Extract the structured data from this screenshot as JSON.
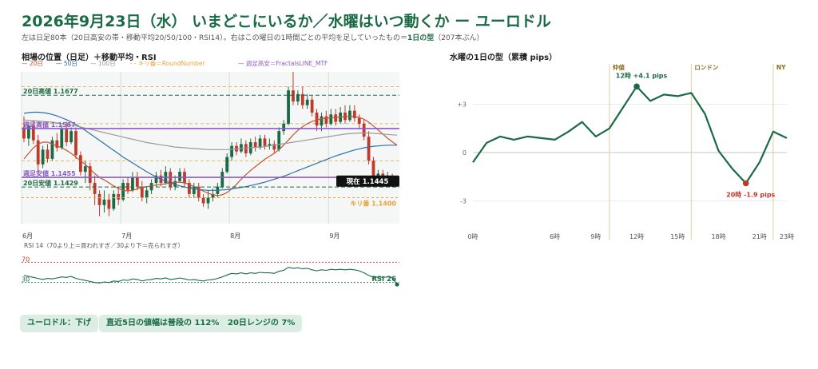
{
  "header": {
    "title": "2026年9月23日（水） いまどこにいるか／水曜はいつ動くか ー ユーロドル",
    "subtitle_pre": "左は日足80本（20日高安の帯・移動平均20/50/100・RSI14）。右はこの曜日の1時間ごとの平均を足していったもの＝",
    "subtitle_bold": "1日の型",
    "subtitle_post": "（207本ぶん）"
  },
  "left": {
    "title": "相場の位置（日足）＋移動平均・RSI",
    "legend": [
      "— 20日",
      "— 50日",
      "— 100日",
      "- - キリ番＝RoundNumber",
      "— 週足高安＝FractalsLINE_MTF"
    ]
  },
  "right": {
    "title": "水曜の1日の型（累積 pips）"
  },
  "chips": [
    "ユーロドル：下げ",
    "直近5日の値幅は普段の 112%",
    "20日レンジの 7%"
  ],
  "colors": {
    "up": "#1a6b45",
    "down": "#c0392b",
    "ma20": "#c8532f",
    "ma50": "#2f6fa8",
    "ma100": "#9a9a9a",
    "round": "#e8a23a",
    "weekly": "#8a5bc8",
    "accent": "#1a6b45"
  },
  "chart_data": [
    {
      "type": "candlestick",
      "ylim": [
        1.133,
        1.174
      ],
      "x_tick_labels": [
        {
          "i": 0,
          "label": "6月"
        },
        {
          "i": 21,
          "label": "7月"
        },
        {
          "i": 44,
          "label": "8月"
        },
        {
          "i": 65,
          "label": "9月"
        }
      ],
      "levels": [
        {
          "name": "20日高値",
          "label": "20日高値 1.1677",
          "value": 1.1677,
          "style": "hdash",
          "color": "#1a6b45"
        },
        {
          "name": "週足高値",
          "label": "週足高値 1.1587",
          "value": 1.1587,
          "style": "solid",
          "color": "#8a5bc8"
        },
        {
          "name": "週足安値",
          "label": "週足安値 1.1455",
          "value": 1.1455,
          "style": "solid",
          "color": "#8a5bc8"
        },
        {
          "name": "20日安値",
          "label": "20日安値 1.1429",
          "value": 1.1429,
          "style": "hdash",
          "color": "#1a6b45"
        },
        {
          "name": "キリ番",
          "label": "キリ番 1.1400",
          "value": 1.14,
          "style": "dash",
          "color": "#e8a23a"
        }
      ],
      "round_numbers": [
        1.15,
        1.16,
        1.17
      ],
      "current_label": "現在 1.1445",
      "current": 1.1445,
      "candles": [
        [
          1.159,
          1.156,
          1.162,
          1.155
        ],
        [
          1.156,
          1.1595,
          1.16,
          1.154
        ],
        [
          1.1595,
          1.1555,
          1.161,
          1.1545
        ],
        [
          1.1555,
          1.149,
          1.157,
          1.147
        ],
        [
          1.149,
          1.153,
          1.154,
          1.148
        ],
        [
          1.153,
          1.1505,
          1.1545,
          1.1495
        ],
        [
          1.1505,
          1.1555,
          1.1565,
          1.15
        ],
        [
          1.1555,
          1.1535,
          1.1575,
          1.1525
        ],
        [
          1.1535,
          1.1585,
          1.1595,
          1.153
        ],
        [
          1.1585,
          1.155,
          1.1605,
          1.154
        ],
        [
          1.155,
          1.158,
          1.159,
          1.1545
        ],
        [
          1.158,
          1.1515,
          1.159,
          1.1505
        ],
        [
          1.1515,
          1.147,
          1.1525,
          1.146
        ],
        [
          1.147,
          1.1485,
          1.15,
          1.144
        ],
        [
          1.1485,
          1.144,
          1.1495,
          1.142
        ],
        [
          1.144,
          1.141,
          1.146,
          1.138
        ],
        [
          1.141,
          1.138,
          1.142,
          1.135
        ],
        [
          1.138,
          1.1395,
          1.142,
          1.136
        ],
        [
          1.1395,
          1.137,
          1.141,
          1.135
        ],
        [
          1.137,
          1.141,
          1.142,
          1.1365
        ],
        [
          1.141,
          1.1395,
          1.143,
          1.138
        ],
        [
          1.1395,
          1.144,
          1.145,
          1.139
        ],
        [
          1.144,
          1.142,
          1.1455,
          1.141
        ],
        [
          1.142,
          1.1455,
          1.147,
          1.1415
        ],
        [
          1.1455,
          1.143,
          1.147,
          1.142
        ],
        [
          1.143,
          1.14,
          1.1445,
          1.139
        ],
        [
          1.14,
          1.142,
          1.143,
          1.1385
        ],
        [
          1.142,
          1.144,
          1.145,
          1.141
        ],
        [
          1.144,
          1.146,
          1.147,
          1.143
        ],
        [
          1.146,
          1.144,
          1.1475,
          1.143
        ],
        [
          1.144,
          1.147,
          1.1485,
          1.1435
        ],
        [
          1.147,
          1.143,
          1.148,
          1.142
        ],
        [
          1.143,
          1.1445,
          1.146,
          1.142
        ],
        [
          1.1445,
          1.147,
          1.148,
          1.144
        ],
        [
          1.147,
          1.144,
          1.148,
          1.143
        ],
        [
          1.144,
          1.141,
          1.145,
          1.14
        ],
        [
          1.141,
          1.143,
          1.144,
          1.14
        ],
        [
          1.143,
          1.14,
          1.144,
          1.139
        ],
        [
          1.14,
          1.1385,
          1.141,
          1.1375
        ],
        [
          1.1385,
          1.14,
          1.142,
          1.137
        ],
        [
          1.14,
          1.141,
          1.1425,
          1.139
        ],
        [
          1.141,
          1.143,
          1.144,
          1.14
        ],
        [
          1.143,
          1.147,
          1.148,
          1.1425
        ],
        [
          1.147,
          1.151,
          1.152,
          1.1465
        ],
        [
          1.151,
          1.154,
          1.155,
          1.15
        ],
        [
          1.154,
          1.1525,
          1.155,
          1.1515
        ],
        [
          1.1525,
          1.1545,
          1.156,
          1.152
        ],
        [
          1.1545,
          1.152,
          1.1555,
          1.151
        ],
        [
          1.152,
          1.155,
          1.156,
          1.1515
        ],
        [
          1.155,
          1.1535,
          1.1565,
          1.1525
        ],
        [
          1.1535,
          1.156,
          1.157,
          1.153
        ],
        [
          1.156,
          1.154,
          1.157,
          1.153
        ],
        [
          1.154,
          1.1545,
          1.156,
          1.153
        ],
        [
          1.1545,
          1.153,
          1.1555,
          1.152
        ],
        [
          1.153,
          1.158,
          1.159,
          1.1525
        ],
        [
          1.158,
          1.16,
          1.161,
          1.157
        ],
        [
          1.16,
          1.169,
          1.17,
          1.1595
        ],
        [
          1.169,
          1.166,
          1.174,
          1.165
        ],
        [
          1.166,
          1.168,
          1.169,
          1.165
        ],
        [
          1.168,
          1.165,
          1.17,
          1.164
        ],
        [
          1.165,
          1.1665,
          1.168,
          1.164
        ],
        [
          1.1665,
          1.163,
          1.1675,
          1.162
        ],
        [
          1.163,
          1.1595,
          1.164,
          1.158
        ],
        [
          1.1595,
          1.162,
          1.163,
          1.158
        ],
        [
          1.162,
          1.16,
          1.1635,
          1.159
        ],
        [
          1.16,
          1.1625,
          1.164,
          1.1595
        ],
        [
          1.1625,
          1.1605,
          1.164,
          1.1595
        ],
        [
          1.1605,
          1.163,
          1.1645,
          1.16
        ],
        [
          1.163,
          1.161,
          1.165,
          1.16
        ],
        [
          1.161,
          1.1635,
          1.165,
          1.1605
        ],
        [
          1.1635,
          1.1615,
          1.165,
          1.1605
        ],
        [
          1.1615,
          1.16,
          1.1625,
          1.1585
        ],
        [
          1.16,
          1.1565,
          1.161,
          1.1555
        ],
        [
          1.1565,
          1.15,
          1.158,
          1.149
        ],
        [
          1.15,
          1.1455,
          1.151,
          1.144
        ],
        [
          1.1455,
          1.1465,
          1.1475,
          1.1445
        ],
        [
          1.1465,
          1.145,
          1.1475,
          1.144
        ],
        [
          1.145,
          1.146,
          1.147,
          1.144
        ],
        [
          1.146,
          1.1448,
          1.1465,
          1.144
        ],
        [
          1.1448,
          1.1445,
          1.1455,
          1.1435
        ]
      ],
      "ma20": [
        1.1505,
        1.152,
        1.1535,
        1.1545,
        1.155,
        1.155,
        1.1545,
        1.154,
        1.1535,
        1.1528,
        1.152,
        1.151,
        1.15,
        1.149,
        1.1478,
        1.1465,
        1.1455,
        1.1448,
        1.144,
        1.1432,
        1.1425,
        1.142,
        1.1418,
        1.142,
        1.1424,
        1.1428,
        1.143,
        1.1432,
        1.1434,
        1.1436,
        1.1438,
        1.144,
        1.1442,
        1.1442,
        1.144,
        1.1436,
        1.143,
        1.1424,
        1.1418,
        1.1412,
        1.1408,
        1.1406,
        1.1408,
        1.1414,
        1.1424,
        1.1436,
        1.145,
        1.1462,
        1.1474,
        1.1484,
        1.1494,
        1.1504,
        1.1512,
        1.152,
        1.153,
        1.1542,
        1.1556,
        1.157,
        1.1582,
        1.1592,
        1.16,
        1.1606,
        1.161,
        1.1613,
        1.1615,
        1.1616,
        1.1617,
        1.1618,
        1.1619,
        1.162,
        1.1619,
        1.1617,
        1.1612,
        1.1604,
        1.1594,
        1.1583,
        1.1572,
        1.1561,
        1.1551,
        1.1542
      ],
      "ma50": [
        1.1628,
        1.163,
        1.1631,
        1.1631,
        1.163,
        1.1628,
        1.1625,
        1.1621,
        1.1616,
        1.1611,
        1.1605,
        1.1598,
        1.159,
        1.1582,
        1.1573,
        1.1564,
        1.1555,
        1.1546,
        1.1537,
        1.1528,
        1.1519,
        1.151,
        1.1502,
        1.1494,
        1.1486,
        1.1478,
        1.147,
        1.1463,
        1.1456,
        1.145,
        1.1445,
        1.144,
        1.1436,
        1.1432,
        1.1429,
        1.1426,
        1.1424,
        1.1422,
        1.1421,
        1.142,
        1.142,
        1.142,
        1.1421,
        1.1422,
        1.1424,
        1.1426,
        1.1428,
        1.143,
        1.1433,
        1.1436,
        1.1439,
        1.1442,
        1.1446,
        1.145,
        1.1454,
        1.1458,
        1.1463,
        1.1468,
        1.1473,
        1.1478,
        1.1483,
        1.1488,
        1.1493,
        1.1498,
        1.1503,
        1.1508,
        1.1513,
        1.1517,
        1.1521,
        1.1525,
        1.1529,
        1.1532,
        1.1535,
        1.1537,
        1.1539,
        1.154,
        1.1541,
        1.1542,
        1.1542,
        1.1542
      ],
      "ma100": [
        1.161,
        1.1609,
        1.1608,
        1.1607,
        1.1606,
        1.1605,
        1.1604,
        1.1602,
        1.16,
        1.1598,
        1.1596,
        1.1594,
        1.1591,
        1.1588,
        1.1585,
        1.1582,
        1.1579,
        1.1576,
        1.1573,
        1.157,
        1.1567,
        1.1564,
        1.1561,
        1.1558,
        1.1555,
        1.1552,
        1.1549,
        1.1547,
        1.1545,
        1.1543,
        1.1541,
        1.1539,
        1.1537,
        1.1536,
        1.1535,
        1.1534,
        1.1533,
        1.1532,
        1.1531,
        1.153,
        1.153,
        1.153,
        1.153,
        1.153,
        1.1531,
        1.1532,
        1.1533,
        1.1534,
        1.1535,
        1.1536,
        1.1537,
        1.1538,
        1.154,
        1.1542,
        1.1544,
        1.1546,
        1.1548,
        1.155,
        1.1552,
        1.1554,
        1.1556,
        1.1558,
        1.156,
        1.1562,
        1.1564,
        1.1566,
        1.1568,
        1.157,
        1.1572,
        1.1573,
        1.1574,
        1.1575,
        1.1575,
        1.1575,
        1.1574,
        1.1573,
        1.1572,
        1.1571,
        1.157,
        1.1569
      ]
    },
    {
      "type": "line",
      "title": "RSI 14（70より上＝買われすぎ／30より下＝売られすぎ）",
      "ylim": [
        20,
        80
      ],
      "levels": [
        {
          "value": 70,
          "label": "70",
          "color": "#c0392b"
        },
        {
          "value": 30,
          "label": "30",
          "color": "#1a6b45"
        }
      ],
      "end_label": "RSI 26",
      "values": [
        44,
        42,
        40,
        38,
        36,
        38,
        37,
        39,
        41,
        40,
        42,
        38,
        36,
        34,
        32,
        30,
        29,
        31,
        30,
        33,
        32,
        35,
        34,
        37,
        36,
        33,
        35,
        36,
        38,
        37,
        39,
        36,
        37,
        39,
        37,
        35,
        36,
        34,
        33,
        35,
        36,
        38,
        41,
        45,
        48,
        47,
        49,
        47,
        49,
        48,
        50,
        49,
        49,
        48,
        52,
        54,
        60,
        58,
        59,
        57,
        58,
        55,
        53,
        55,
        54,
        56,
        55,
        56,
        55,
        56,
        55,
        53,
        49,
        44,
        40,
        41,
        40,
        41,
        40,
        26
      ]
    },
    {
      "type": "line",
      "title": "水曜の1日の型（累積 pips）",
      "x": [
        0,
        1,
        2,
        3,
        4,
        5,
        6,
        7,
        8,
        9,
        10,
        11,
        12,
        13,
        14,
        15,
        16,
        17,
        18,
        19,
        20,
        21,
        22,
        23
      ],
      "values": [
        -0.6,
        0.6,
        1.0,
        0.8,
        1.0,
        0.9,
        0.8,
        1.3,
        1.9,
        1.0,
        1.5,
        2.8,
        4.1,
        3.2,
        3.6,
        3.5,
        3.7,
        2.4,
        0.1,
        -1.0,
        -1.9,
        -0.6,
        1.3,
        0.9
      ],
      "y_ticks": [
        {
          "v": 3,
          "label": "+3"
        },
        {
          "v": 0,
          "label": "0"
        },
        {
          "v": -3,
          "label": "-3"
        }
      ],
      "ylim": [
        -5,
        5.5
      ],
      "x_ticks": [
        {
          "v": 0,
          "label": "0時"
        },
        {
          "v": 6,
          "label": "6時"
        },
        {
          "v": 9,
          "label": "9時"
        },
        {
          "v": 12,
          "label": "12時"
        },
        {
          "v": 15,
          "label": "15時"
        },
        {
          "v": 18,
          "label": "18時"
        },
        {
          "v": 21,
          "label": "21時"
        },
        {
          "v": 23,
          "label": "23時"
        }
      ],
      "sessions": [
        {
          "v": 10,
          "label": "仲値"
        },
        {
          "v": 16,
          "label": "ロンドン"
        },
        {
          "v": 22,
          "label": "NY"
        }
      ],
      "annotations": [
        {
          "i": 12,
          "label": "12時 +4.1 pips",
          "color": "#1a6b45"
        },
        {
          "i": 20,
          "label": "20時 -1.9 pips",
          "color": "#c0392b"
        }
      ]
    }
  ]
}
